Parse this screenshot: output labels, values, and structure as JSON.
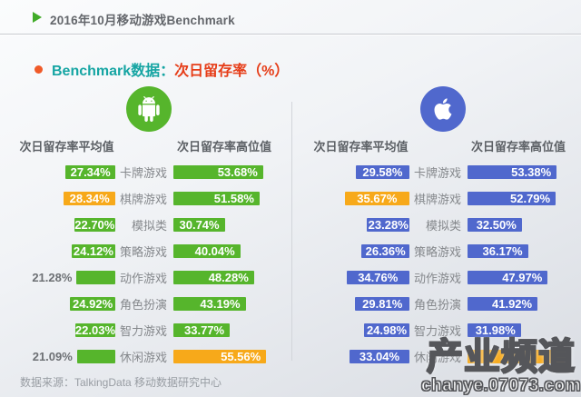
{
  "page": {
    "title": "2016年10月移动游戏Benchmark",
    "section_title_prefix": "Benchmark数据：",
    "section_title_highlight": "次日留存率（%）",
    "source_note": "数据来源：TalkingData 移动数据研究中心"
  },
  "watermark": {
    "brand": "产业频道",
    "url": "chanye.07073.com"
  },
  "colors": {
    "android_green": "#56b52c",
    "ios_blue": "#5068cd",
    "highlight_orange": "#f7a91a",
    "teal_text": "#16a5a3",
    "red_text": "#e63c17",
    "bullet_orange": "#f05a28",
    "triangle_green": "#41ab29"
  },
  "chart_data": [
    {
      "type": "bar",
      "platform": "Android",
      "icon": "android-icon",
      "accent": "#56b52c",
      "highlight_color": "#f7a91a",
      "unit": "%",
      "columns": {
        "avg": "次日留存率平均值",
        "high": "次日留存率高位值"
      },
      "categories": [
        "卡牌游戏",
        "棋牌游戏",
        "模拟类",
        "策略游戏",
        "动作游戏",
        "角色扮演",
        "智力游戏",
        "休闲游戏"
      ],
      "series": [
        {
          "name": "次日留存率平均值",
          "values": [
            27.34,
            28.34,
            22.7,
            24.12,
            21.28,
            24.92,
            22.03,
            21.09
          ]
        },
        {
          "name": "次日留存率高位值",
          "values": [
            53.68,
            51.58,
            30.74,
            40.04,
            48.28,
            43.19,
            33.77,
            55.56
          ]
        }
      ],
      "avg_label_outside": [
        false,
        false,
        false,
        false,
        true,
        false,
        false,
        true
      ],
      "avg_highlight": [
        false,
        true,
        false,
        false,
        false,
        false,
        false,
        false
      ],
      "high_highlight": [
        false,
        false,
        false,
        false,
        false,
        false,
        false,
        true
      ],
      "high_label_hidden": [
        false,
        false,
        false,
        false,
        false,
        false,
        false,
        false
      ],
      "high_obscured_bar_est": null
    },
    {
      "type": "bar",
      "platform": "iOS",
      "icon": "apple-icon",
      "accent": "#5068cd",
      "highlight_color": "#f7a91a",
      "unit": "%",
      "columns": {
        "avg": "次日留存率平均值",
        "high": "次日留存率高位值"
      },
      "categories": [
        "卡牌游戏",
        "棋牌游戏",
        "模拟类",
        "策略游戏",
        "动作游戏",
        "角色扮演",
        "智力游戏",
        "休闲游戏"
      ],
      "series": [
        {
          "name": "次日留存率平均值",
          "values": [
            29.58,
            35.67,
            23.28,
            26.36,
            34.76,
            29.81,
            24.98,
            33.04
          ]
        },
        {
          "name": "次日留存率高位值",
          "values": [
            53.38,
            52.79,
            32.5,
            36.17,
            47.97,
            41.92,
            31.98,
            null
          ]
        }
      ],
      "avg_label_outside": [
        false,
        false,
        false,
        false,
        false,
        false,
        false,
        false
      ],
      "avg_highlight": [
        false,
        true,
        false,
        false,
        false,
        false,
        false,
        false
      ],
      "high_highlight": [
        false,
        false,
        false,
        false,
        false,
        false,
        false,
        true
      ],
      "high_label_hidden": [
        false,
        false,
        false,
        false,
        false,
        false,
        false,
        true
      ],
      "high_obscured_bar_est": 58
    }
  ]
}
